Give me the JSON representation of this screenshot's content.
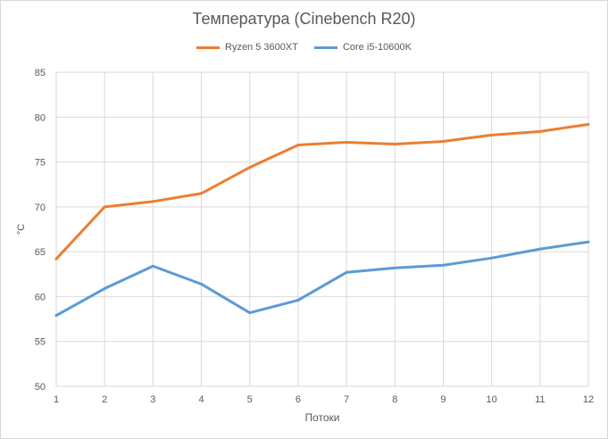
{
  "chart_data": {
    "type": "line",
    "title": "Температура (Cinebench R20)",
    "xlabel": "Потоки",
    "ylabel": "°C",
    "x": [
      1,
      2,
      3,
      4,
      5,
      6,
      7,
      8,
      9,
      10,
      11,
      12
    ],
    "x_tick_labels": [
      "1",
      "2",
      "3",
      "4",
      "5",
      "6",
      "7",
      "8",
      "9",
      "10",
      "11",
      "12"
    ],
    "ylim": [
      50,
      85
    ],
    "y_ticks": [
      50,
      55,
      60,
      65,
      70,
      75,
      80,
      85
    ],
    "grid": true,
    "legend_position": "top",
    "series": [
      {
        "name": "Ryzen 5 3600XT",
        "color": "#ED7D31",
        "values": [
          64.2,
          70.0,
          70.6,
          71.5,
          74.4,
          76.9,
          77.2,
          77.0,
          77.3,
          78.0,
          78.4,
          79.2
        ]
      },
      {
        "name": "Core i5-10600K",
        "color": "#5B9BD5",
        "values": [
          57.9,
          60.9,
          63.4,
          61.4,
          58.2,
          59.6,
          62.7,
          63.2,
          63.5,
          64.3,
          65.3,
          66.1
        ]
      }
    ]
  }
}
